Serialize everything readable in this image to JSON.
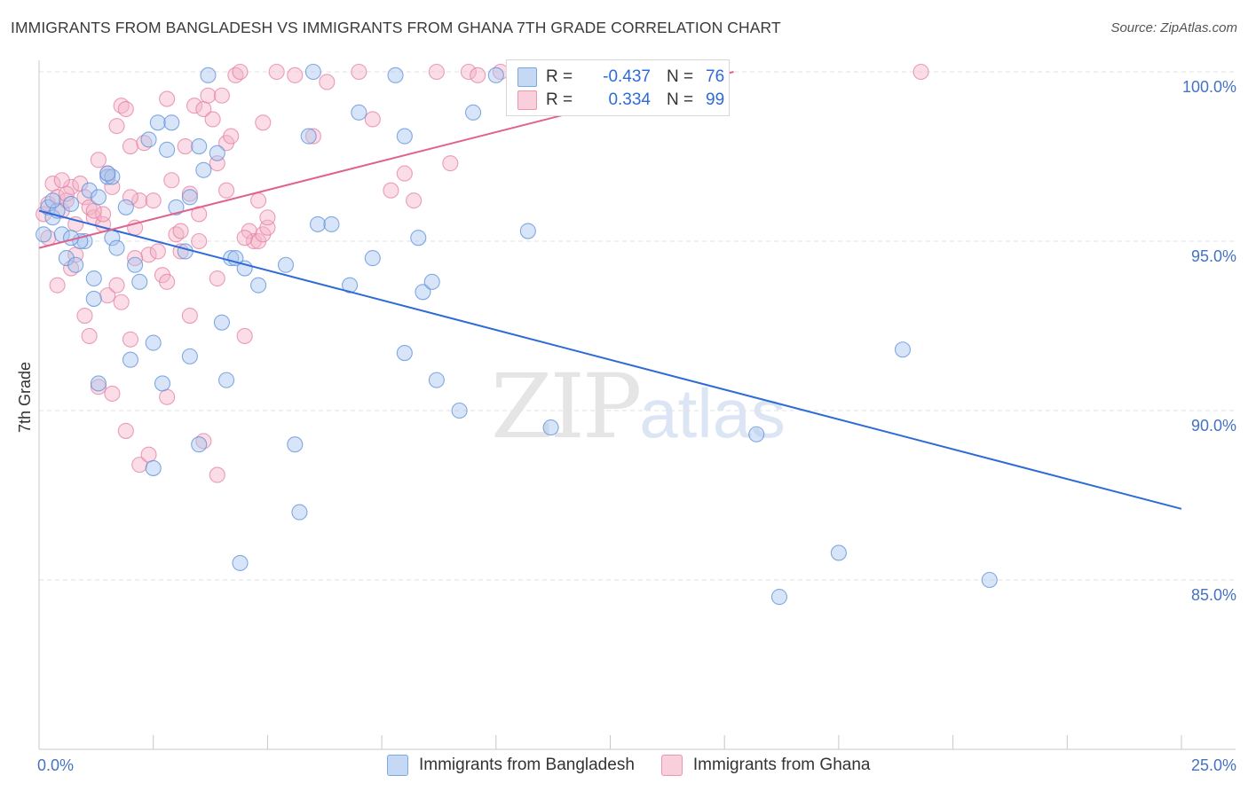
{
  "title": "IMMIGRANTS FROM BANGLADESH VS IMMIGRANTS FROM GHANA 7TH GRADE CORRELATION CHART",
  "source": "Source: ZipAtlas.com",
  "watermark": {
    "zip": "ZIP",
    "atlas": "atlas"
  },
  "legend": {
    "rows": [
      {
        "r_label": "R =",
        "r_value": "-0.437",
        "n_label": "N =",
        "n_value": "76",
        "color": "#a9c6ef"
      },
      {
        "r_label": "R =",
        "r_value": "0.334",
        "n_label": "N =",
        "n_value": "99",
        "color": "#f4b4c8"
      }
    ]
  },
  "bottom_legend": [
    {
      "label": "Immigrants from Bangladesh",
      "color": "#a9c6ef"
    },
    {
      "label": "Immigrants from Ghana",
      "color": "#f4b4c8"
    }
  ],
  "chart_data": {
    "type": "scatter",
    "title": "IMMIGRANTS FROM BANGLADESH VS IMMIGRANTS FROM GHANA 7TH GRADE CORRELATION CHART",
    "xlabel": "",
    "ylabel": "7th Grade",
    "xlim": [
      0,
      25
    ],
    "ylim": [
      80.5,
      100.7
    ],
    "x_tick_labels": [
      "0.0%",
      "25.0%"
    ],
    "y_ticks": [
      100,
      95,
      90,
      85
    ],
    "y_tick_labels": [
      "100.0%",
      "95.0%",
      "90.0%",
      "85.0%"
    ],
    "grid": "horizontal dashed",
    "series": [
      {
        "name": "Immigrants from Bangladesh",
        "color": "#5b8fd9",
        "fill": "#a9c6ef",
        "trend": {
          "x": [
            0,
            25
          ],
          "y": [
            95.9,
            87.1
          ],
          "color": "#2e6bd6"
        },
        "points": [
          [
            0.1,
            95.2
          ],
          [
            0.2,
            96.0
          ],
          [
            0.3,
            95.7
          ],
          [
            0.4,
            95.9
          ],
          [
            0.5,
            95.2
          ],
          [
            0.6,
            94.5
          ],
          [
            0.7,
            96.1
          ],
          [
            0.8,
            94.3
          ],
          [
            1.0,
            95.0
          ],
          [
            1.1,
            96.5
          ],
          [
            1.2,
            93.9
          ],
          [
            1.3,
            96.3
          ],
          [
            1.5,
            96.9
          ],
          [
            1.6,
            95.1
          ],
          [
            1.7,
            94.8
          ],
          [
            1.9,
            96.0
          ],
          [
            2.1,
            94.3
          ],
          [
            2.2,
            93.8
          ],
          [
            2.4,
            98.0
          ],
          [
            2.6,
            98.5
          ],
          [
            2.8,
            97.7
          ],
          [
            3.0,
            96.0
          ],
          [
            3.2,
            94.7
          ],
          [
            3.3,
            96.3
          ],
          [
            3.5,
            97.8
          ],
          [
            3.6,
            97.1
          ],
          [
            3.9,
            97.6
          ],
          [
            4.0,
            92.6
          ],
          [
            4.2,
            94.5
          ],
          [
            4.3,
            94.5
          ],
          [
            4.5,
            94.2
          ],
          [
            4.8,
            93.7
          ],
          [
            5.4,
            94.3
          ],
          [
            5.9,
            98.1
          ],
          [
            6.1,
            95.5
          ],
          [
            6.4,
            95.5
          ],
          [
            6.8,
            93.7
          ],
          [
            7.0,
            98.8
          ],
          [
            7.3,
            94.5
          ],
          [
            8.0,
            98.1
          ],
          [
            8.3,
            95.1
          ],
          [
            7.8,
            99.9
          ],
          [
            2.9,
            98.5
          ],
          [
            3.7,
            99.9
          ],
          [
            0.9,
            95.0
          ],
          [
            1.3,
            90.8
          ],
          [
            2.0,
            91.5
          ],
          [
            2.5,
            92.0
          ],
          [
            2.7,
            90.8
          ],
          [
            3.3,
            91.6
          ],
          [
            3.5,
            89.0
          ],
          [
            4.1,
            90.9
          ],
          [
            5.6,
            89.0
          ],
          [
            5.7,
            87.0
          ],
          [
            4.4,
            85.5
          ],
          [
            8.0,
            91.7
          ],
          [
            8.4,
            93.5
          ],
          [
            8.6,
            93.8
          ],
          [
            8.7,
            90.9
          ],
          [
            9.2,
            90.0
          ],
          [
            9.5,
            98.8
          ],
          [
            10.0,
            99.9
          ],
          [
            10.7,
            95.3
          ],
          [
            11.2,
            89.5
          ],
          [
            15.7,
            89.3
          ],
          [
            16.2,
            84.5
          ],
          [
            17.5,
            85.8
          ],
          [
            18.9,
            91.8
          ],
          [
            20.8,
            85.0
          ],
          [
            6.0,
            100.0
          ],
          [
            1.2,
            93.3
          ],
          [
            0.3,
            96.2
          ],
          [
            0.7,
            95.1
          ],
          [
            1.6,
            96.9
          ],
          [
            2.5,
            88.3
          ],
          [
            1.5,
            97.0
          ]
        ]
      },
      {
        "name": "Immigrants from Ghana",
        "color": "#e57fa2",
        "fill": "#f4b4c8",
        "trend": {
          "x": [
            0,
            15.2
          ],
          "y": [
            94.8,
            100.0
          ],
          "color": "#e0628f"
        },
        "points": [
          [
            0.1,
            95.8
          ],
          [
            0.2,
            96.1
          ],
          [
            0.3,
            96.7
          ],
          [
            0.4,
            96.3
          ],
          [
            0.5,
            95.9
          ],
          [
            0.6,
            96.2
          ],
          [
            0.7,
            96.6
          ],
          [
            0.8,
            95.5
          ],
          [
            0.9,
            96.7
          ],
          [
            1.0,
            96.3
          ],
          [
            1.1,
            96.0
          ],
          [
            1.2,
            95.7
          ],
          [
            1.3,
            97.4
          ],
          [
            1.4,
            95.5
          ],
          [
            1.5,
            97.0
          ],
          [
            1.6,
            96.6
          ],
          [
            1.7,
            98.4
          ],
          [
            1.8,
            99.0
          ],
          [
            1.9,
            98.9
          ],
          [
            2.0,
            97.8
          ],
          [
            2.1,
            95.4
          ],
          [
            2.2,
            96.2
          ],
          [
            2.3,
            97.9
          ],
          [
            2.4,
            94.6
          ],
          [
            2.5,
            96.2
          ],
          [
            2.7,
            94.0
          ],
          [
            2.8,
            93.8
          ],
          [
            2.9,
            96.8
          ],
          [
            3.0,
            95.2
          ],
          [
            3.1,
            95.3
          ],
          [
            3.2,
            97.8
          ],
          [
            3.3,
            96.4
          ],
          [
            3.4,
            99.0
          ],
          [
            3.5,
            95.0
          ],
          [
            3.6,
            98.9
          ],
          [
            3.7,
            99.3
          ],
          [
            3.8,
            98.6
          ],
          [
            3.9,
            97.3
          ],
          [
            4.0,
            99.3
          ],
          [
            4.1,
            97.9
          ],
          [
            4.2,
            98.1
          ],
          [
            4.3,
            99.9
          ],
          [
            4.4,
            100.0
          ],
          [
            4.5,
            92.2
          ],
          [
            4.6,
            95.3
          ],
          [
            4.7,
            95.0
          ],
          [
            4.8,
            95.0
          ],
          [
            4.9,
            95.2
          ],
          [
            5.0,
            95.4
          ],
          [
            4.1,
            96.5
          ],
          [
            0.4,
            93.7
          ],
          [
            0.8,
            94.6
          ],
          [
            1.0,
            92.8
          ],
          [
            1.1,
            92.2
          ],
          [
            1.3,
            90.7
          ],
          [
            1.5,
            93.4
          ],
          [
            1.6,
            90.5
          ],
          [
            1.8,
            93.2
          ],
          [
            1.9,
            89.4
          ],
          [
            2.0,
            92.1
          ],
          [
            2.2,
            88.4
          ],
          [
            2.4,
            88.7
          ],
          [
            2.8,
            90.4
          ],
          [
            3.3,
            92.8
          ],
          [
            3.6,
            89.1
          ],
          [
            3.9,
            88.1
          ],
          [
            4.9,
            98.5
          ],
          [
            5.6,
            99.9
          ],
          [
            6.0,
            98.1
          ],
          [
            6.3,
            99.7
          ],
          [
            7.0,
            100.0
          ],
          [
            7.3,
            98.6
          ],
          [
            7.7,
            96.5
          ],
          [
            8.0,
            97.0
          ],
          [
            8.7,
            100.0
          ],
          [
            9.0,
            97.3
          ],
          [
            9.4,
            100.0
          ],
          [
            10.1,
            100.0
          ],
          [
            0.7,
            94.2
          ],
          [
            1.7,
            93.7
          ],
          [
            2.1,
            94.5
          ],
          [
            2.6,
            94.7
          ],
          [
            3.1,
            94.7
          ],
          [
            3.5,
            95.8
          ],
          [
            4.5,
            95.1
          ],
          [
            4.8,
            96.2
          ],
          [
            2.8,
            99.2
          ],
          [
            5.2,
            100.0
          ],
          [
            9.6,
            99.9
          ],
          [
            3.9,
            93.9
          ],
          [
            1.4,
            95.8
          ],
          [
            0.2,
            95.1
          ],
          [
            0.6,
            96.4
          ],
          [
            1.2,
            95.9
          ],
          [
            2.0,
            96.3
          ],
          [
            5.0,
            95.7
          ],
          [
            8.2,
            96.2
          ],
          [
            19.3,
            100.0
          ],
          [
            0.5,
            96.8
          ]
        ]
      }
    ]
  }
}
